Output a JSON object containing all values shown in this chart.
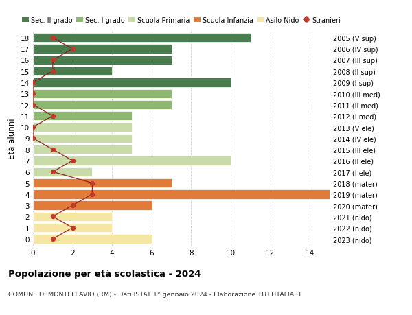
{
  "ages": [
    0,
    1,
    2,
    3,
    4,
    5,
    6,
    7,
    8,
    9,
    10,
    11,
    12,
    13,
    14,
    15,
    16,
    17,
    18
  ],
  "right_labels": [
    "2023 (nido)",
    "2022 (nido)",
    "2021 (nido)",
    "2020 (mater)",
    "2019 (mater)",
    "2018 (mater)",
    "2017 (I ele)",
    "2016 (II ele)",
    "2015 (III ele)",
    "2014 (IV ele)",
    "2013 (V ele)",
    "2012 (I med)",
    "2011 (II med)",
    "2010 (III med)",
    "2009 (I sup)",
    "2008 (II sup)",
    "2007 (III sup)",
    "2006 (IV sup)",
    "2005 (V sup)"
  ],
  "bar_values": [
    6,
    4,
    4,
    6,
    15,
    7,
    3,
    10,
    5,
    5,
    5,
    5,
    7,
    7,
    10,
    4,
    7,
    7,
    11
  ],
  "bar_colors": [
    "#f5e6a3",
    "#f5e6a3",
    "#f5e6a3",
    "#e07b39",
    "#e07b39",
    "#e07b39",
    "#c8dba8",
    "#c8dba8",
    "#c8dba8",
    "#c8dba8",
    "#c8dba8",
    "#8eb870",
    "#8eb870",
    "#8eb870",
    "#4a7c4e",
    "#4a7c4e",
    "#4a7c4e",
    "#4a7c4e",
    "#4a7c4e"
  ],
  "stranieri_values": [
    1,
    2,
    1,
    2,
    3,
    3,
    1,
    2,
    1,
    0,
    0,
    1,
    0,
    0,
    0,
    1,
    1,
    2,
    1
  ],
  "legend_labels": [
    "Sec. II grado",
    "Sec. I grado",
    "Scuola Primaria",
    "Scuola Infanzia",
    "Asilo Nido",
    "Stranieri"
  ],
  "legend_colors": [
    "#4a7c4e",
    "#8eb870",
    "#c8dba8",
    "#e07b39",
    "#f5e6a3",
    "#c0392b"
  ],
  "title": "Popolazione per età scolastica - 2024",
  "subtitle": "COMUNE DI MONTEFLAVIO (RM) - Dati ISTAT 1° gennaio 2024 - Elaborazione TUTTITALIA.IT",
  "ylabel": "Età alunni",
  "xlim": [
    0,
    15
  ],
  "xticks": [
    0,
    2,
    4,
    6,
    8,
    10,
    12,
    14
  ],
  "bg_color": "#ffffff",
  "grid_color": "#cccccc",
  "bar_height": 0.82
}
